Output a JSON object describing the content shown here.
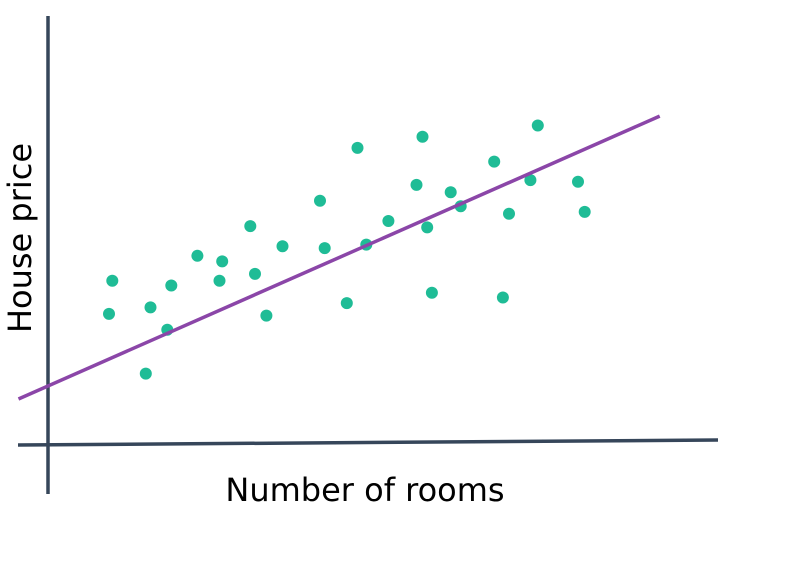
{
  "chart_data": {
    "type": "scatter",
    "title": "",
    "xlabel": "Number of rooms",
    "ylabel": "House price",
    "xlim": [
      0,
      100
    ],
    "ylim": [
      0,
      100
    ],
    "grid": false,
    "ticks": false,
    "points": [
      {
        "x": 9.1,
        "y": 30.5
      },
      {
        "x": 9.6,
        "y": 38.2
      },
      {
        "x": 14.6,
        "y": 16.6
      },
      {
        "x": 15.3,
        "y": 32.0
      },
      {
        "x": 17.8,
        "y": 26.8
      },
      {
        "x": 18.4,
        "y": 37.1
      },
      {
        "x": 22.3,
        "y": 44.0
      },
      {
        "x": 25.6,
        "y": 38.2
      },
      {
        "x": 26.0,
        "y": 42.7
      },
      {
        "x": 30.2,
        "y": 50.9
      },
      {
        "x": 30.9,
        "y": 39.8
      },
      {
        "x": 32.6,
        "y": 30.1
      },
      {
        "x": 35.0,
        "y": 46.2
      },
      {
        "x": 40.6,
        "y": 56.8
      },
      {
        "x": 41.3,
        "y": 45.8
      },
      {
        "x": 44.6,
        "y": 33.0
      },
      {
        "x": 46.2,
        "y": 69.1
      },
      {
        "x": 47.5,
        "y": 46.6
      },
      {
        "x": 50.8,
        "y": 52.1
      },
      {
        "x": 55.0,
        "y": 60.5
      },
      {
        "x": 55.9,
        "y": 71.7
      },
      {
        "x": 56.6,
        "y": 50.6
      },
      {
        "x": 57.3,
        "y": 35.4
      },
      {
        "x": 60.1,
        "y": 58.8
      },
      {
        "x": 61.6,
        "y": 55.5
      },
      {
        "x": 66.6,
        "y": 65.9
      },
      {
        "x": 67.9,
        "y": 34.3
      },
      {
        "x": 68.8,
        "y": 53.8
      },
      {
        "x": 72.0,
        "y": 61.6
      },
      {
        "x": 73.1,
        "y": 74.3
      },
      {
        "x": 79.1,
        "y": 61.2
      },
      {
        "x": 80.1,
        "y": 54.2
      }
    ],
    "trendline": {
      "x": [
        -4.4,
        91.3
      ],
      "y": [
        10.7,
        76.5
      ]
    },
    "colors": {
      "points": "#1fbc96",
      "trendline": "#8b46a8",
      "axes": "#36465a"
    }
  }
}
